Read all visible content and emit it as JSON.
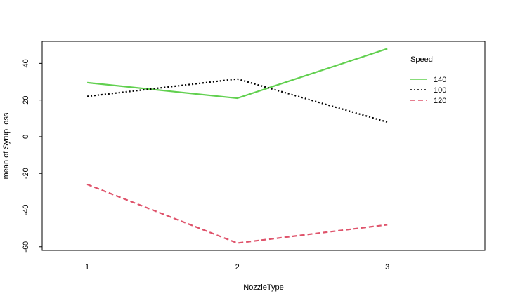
{
  "chart_data": {
    "type": "line",
    "title": "",
    "xlabel": "NozzleType",
    "ylabel": "mean of SyrupLoss",
    "categories": [
      "1",
      "2",
      "3"
    ],
    "x_ticks": [
      "1",
      "2",
      "3"
    ],
    "y_ticks": [
      -60,
      -40,
      -20,
      0,
      20,
      40
    ],
    "y_tick_labels": [
      "-60",
      "-40",
      "-20",
      "0",
      "20",
      "40"
    ],
    "xlim": [
      0.7,
      3.65
    ],
    "ylim": [
      -62,
      52
    ],
    "grid": false,
    "legend": {
      "title": "Speed",
      "position": "top-right",
      "entries": [
        "140",
        "100",
        "120"
      ]
    },
    "series": [
      {
        "name": "140",
        "values": [
          29.5,
          21,
          48
        ],
        "color": "#61d04f",
        "dash": "solid"
      },
      {
        "name": "100",
        "values": [
          22,
          31.5,
          8
        ],
        "color": "#000000",
        "dash": "dotted"
      },
      {
        "name": "120",
        "values": [
          -26,
          -58,
          -48
        ],
        "color": "#df536b",
        "dash": "dashed"
      }
    ]
  }
}
